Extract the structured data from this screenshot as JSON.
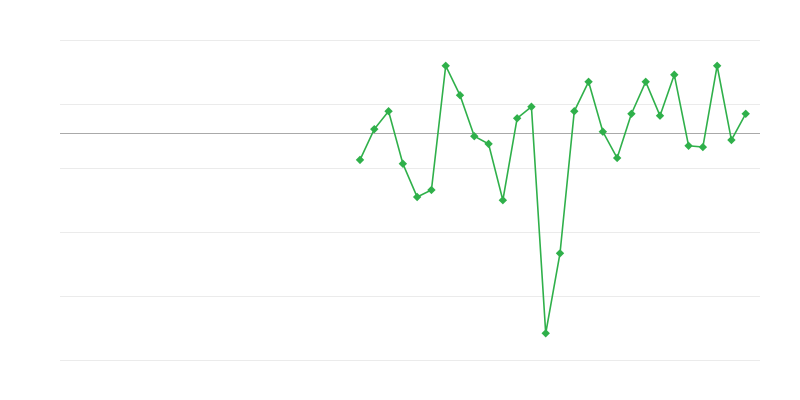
{
  "chart_data": {
    "type": "line",
    "title": "",
    "xlabel": "",
    "ylabel": "",
    "xlim": [
      0,
      49
    ],
    "ylim": [
      -3.547,
      1.453
    ],
    "grid": true,
    "gridlines_y": [
      1.453,
      0.453,
      -0.547,
      -1.547,
      -2.547,
      -3.547
    ],
    "baseline": 0,
    "legend": "none",
    "marker": "diamond",
    "color": "#2fb04a",
    "grid_color": "#ebebeb",
    "baseline_color": "#aaaaaa",
    "series": [
      {
        "x": [
          21,
          22,
          23,
          24,
          25,
          26,
          27,
          28,
          29,
          30,
          31,
          32,
          33,
          34,
          35,
          36,
          37,
          38,
          39,
          40,
          41,
          42,
          43,
          44,
          45,
          46,
          47,
          48
        ],
        "values": [
          -0.42,
          0.06,
          0.34,
          -0.48,
          -1.0,
          -0.89,
          1.05,
          0.59,
          -0.05,
          -0.17,
          -1.05,
          0.23,
          0.41,
          -3.13,
          -1.88,
          0.34,
          0.8,
          0.02,
          -0.39,
          0.3,
          0.8,
          0.27,
          0.91,
          -0.2,
          -0.22,
          1.05,
          -0.11,
          0.3
        ]
      }
    ]
  }
}
